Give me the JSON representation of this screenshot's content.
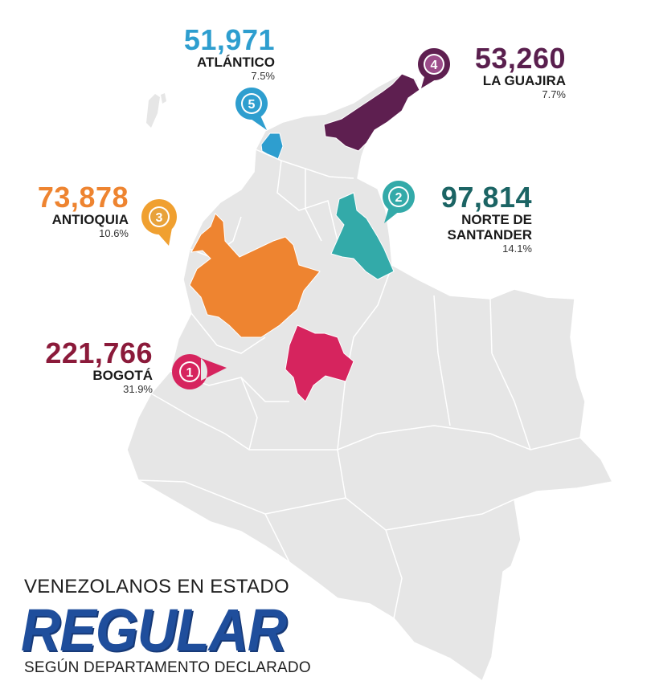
{
  "title": {
    "line1": "VENEZOLANOS  EN ESTADO",
    "line2": "REGULAR",
    "line3": "SEGÚN DEPARTAMENTO DECLARADO"
  },
  "regions": [
    {
      "rank": "1",
      "value": "221,766",
      "name": "BOGOTÁ",
      "name2": "",
      "pct": "31.9%",
      "color": "#8b1a3a",
      "fill": "#d6245e"
    },
    {
      "rank": "2",
      "value": "97,814",
      "name": "NORTE DE",
      "name2": "SANTANDER",
      "pct": "14.1%",
      "color": "#1b6464",
      "fill": "#33aaa9"
    },
    {
      "rank": "3",
      "value": "73,878",
      "name": "ANTIOQUIA",
      "name2": "",
      "pct": "10.6%",
      "color": "#ee8430",
      "fill": "#ee8430"
    },
    {
      "rank": "4",
      "value": "53,260",
      "name": "LA GUAJIRA",
      "name2": "",
      "pct": "7.7%",
      "color": "#5a1f4e",
      "fill": "#5e1f50"
    },
    {
      "rank": "5",
      "value": "51,971",
      "name": "ATLÁNTICO",
      "name2": "",
      "pct": "7.5%",
      "color": "#2e9ecf",
      "fill": "#2e9ecf"
    }
  ]
}
